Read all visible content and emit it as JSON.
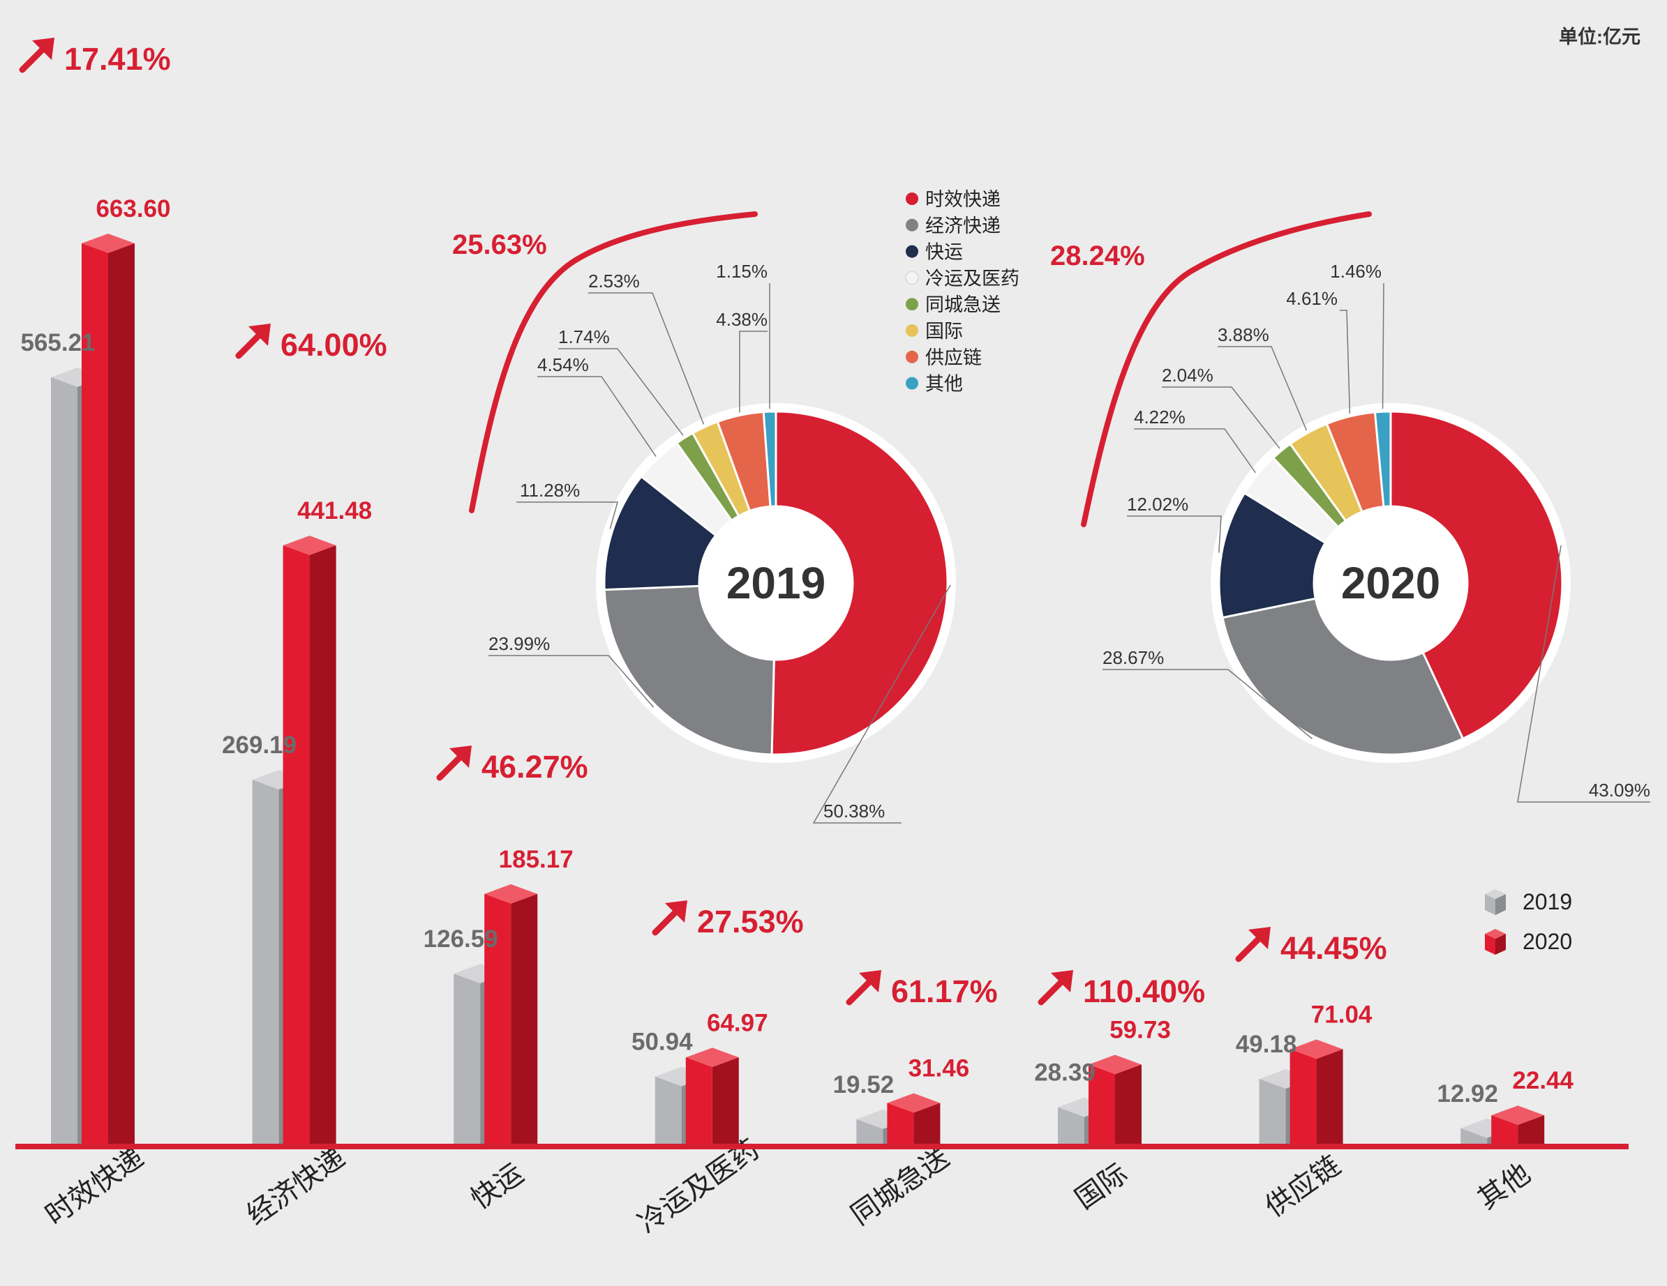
{
  "unit": "单位:亿元",
  "colors": {
    "bar_2019": "#9c9da1",
    "bar_2020": "#d71f32",
    "baseline": "#d71f32",
    "accent": "#d71f32"
  },
  "chart_data": [
    {
      "type": "bar",
      "categories": [
        "时效快递",
        "经济快递",
        "快运",
        "冷运及医药",
        "同城急送",
        "国际",
        "供应链",
        "其他"
      ],
      "series": [
        {
          "name": "2019",
          "values": [
            565.21,
            269.19,
            126.59,
            50.94,
            19.52,
            28.39,
            49.18,
            12.92
          ],
          "labels": [
            "565.21",
            "269.19",
            "126.59",
            "50.94",
            "19.52",
            "28.39",
            "49.18",
            "12.92"
          ]
        },
        {
          "name": "2020",
          "values": [
            663.6,
            441.48,
            185.17,
            64.97,
            31.46,
            59.73,
            71.04,
            22.44
          ],
          "labels": [
            "663.60",
            "441.48",
            "185.17",
            "64.97",
            "31.46",
            "59.73",
            "71.04",
            "22.44"
          ]
        }
      ],
      "growth": [
        "17.41%",
        "64.00%",
        "46.27%",
        "27.53%",
        "61.17%",
        "110.40%",
        "44.45%"
      ],
      "ylim": [
        0,
        700
      ],
      "legend": "right"
    },
    {
      "type": "pie",
      "title": "2019",
      "share_label": "25.63%",
      "categories": [
        "时效快递",
        "经济快递",
        "快运",
        "冷运及医药",
        "同城急送",
        "国际",
        "供应链",
        "其他"
      ],
      "values": [
        50.38,
        23.99,
        11.28,
        4.54,
        1.74,
        2.53,
        4.38,
        1.15
      ],
      "labels": [
        "50.38%",
        "23.99%",
        "11.28%",
        "4.54%",
        "1.74%",
        "2.53%",
        "4.38%",
        "1.15%"
      ]
    },
    {
      "type": "pie",
      "title": "2020",
      "share_label": "28.24%",
      "categories": [
        "时效快递",
        "经济快递",
        "快运",
        "冷运及医药",
        "同城急送",
        "国际",
        "供应链",
        "其他"
      ],
      "values": [
        43.09,
        28.67,
        12.02,
        4.22,
        2.04,
        3.88,
        4.61,
        1.46
      ],
      "labels": [
        "43.09%",
        "28.67%",
        "12.02%",
        "4.22%",
        "2.04%",
        "3.88%",
        "4.61%",
        "1.46%"
      ]
    }
  ],
  "pie_legend": {
    "items": [
      "时效快递",
      "经济快递",
      "快运",
      "冷运及医药",
      "同城急送",
      "国际",
      "供应链",
      "其他"
    ],
    "colors": [
      "#d71f32",
      "#808184",
      "#1f2d4e",
      "#f4f4f4",
      "#7ea04a",
      "#e7c45a",
      "#e5654b",
      "#3aa0c4"
    ]
  }
}
